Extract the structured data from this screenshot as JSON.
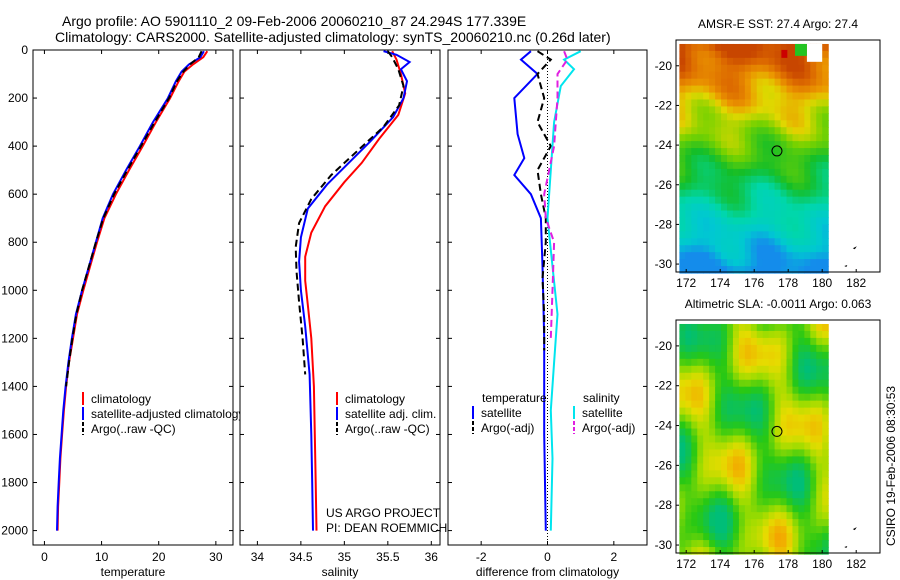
{
  "header": {
    "line1": "Argo profile: AO 5901110_2 09-Feb-2006 20060210_87 24.294S 177.339E",
    "line2": "Climatology: CARS2000. Satellite-adjusted climatology: synTS_20060210.nc (0.26d later)"
  },
  "side_label": "CSIRO 19-Feb-2006 08:30:53",
  "colors": {
    "red": "#ff0000",
    "blue": "#0000ff",
    "black": "#000000",
    "cyan": "#00e5ee",
    "magenta": "#e020e0"
  },
  "chart_data": [
    {
      "type": "line",
      "id": "temperature",
      "xlabel": "temperature",
      "xticks": [
        0,
        10,
        20,
        30
      ],
      "xlim": [
        -2,
        33
      ],
      "yticks": [
        0,
        200,
        400,
        600,
        800,
        1000,
        1200,
        1400,
        1600,
        1800,
        2000
      ],
      "ylim": [
        0,
        2060
      ],
      "legend": [
        {
          "label": "climatology",
          "color": "#ff0000",
          "style": "solid"
        },
        {
          "label": "satellite-adjusted climatology",
          "color": "#0000ff",
          "style": "solid"
        },
        {
          "label": "Argo(..raw -QC)",
          "color": "#000000",
          "style": "dashed"
        }
      ],
      "series": [
        {
          "color": "#ff0000",
          "style": "solid",
          "points": [
            [
              28.5,
              5
            ],
            [
              27.8,
              30
            ],
            [
              26,
              60
            ],
            [
              24.5,
              90
            ],
            [
              23.5,
              130
            ],
            [
              22,
              200
            ],
            [
              19.5,
              300
            ],
            [
              17.2,
              400
            ],
            [
              14.8,
              500
            ],
            [
              12.5,
              600
            ],
            [
              10.5,
              700
            ],
            [
              9.2,
              800
            ],
            [
              8,
              900
            ],
            [
              6.8,
              1000
            ],
            [
              5.7,
              1100
            ],
            [
              5,
              1200
            ],
            [
              4.3,
              1300
            ],
            [
              3.8,
              1400
            ],
            [
              3.4,
              1500
            ],
            [
              3.1,
              1600
            ],
            [
              2.8,
              1700
            ],
            [
              2.6,
              1800
            ],
            [
              2.4,
              1900
            ],
            [
              2.3,
              2000
            ]
          ]
        },
        {
          "color": "#0000ff",
          "style": "solid",
          "points": [
            [
              27.9,
              5
            ],
            [
              27.3,
              30
            ],
            [
              25.3,
              60
            ],
            [
              24,
              90
            ],
            [
              23,
              130
            ],
            [
              21.6,
              200
            ],
            [
              19,
              300
            ],
            [
              16.7,
              400
            ],
            [
              14.3,
              500
            ],
            [
              12,
              600
            ],
            [
              10.2,
              700
            ],
            [
              9,
              800
            ],
            [
              7.8,
              900
            ],
            [
              6.6,
              1000
            ],
            [
              5.5,
              1100
            ],
            [
              4.8,
              1200
            ],
            [
              4.2,
              1300
            ],
            [
              3.7,
              1400
            ],
            [
              3.3,
              1500
            ],
            [
              3,
              1600
            ],
            [
              2.7,
              1700
            ],
            [
              2.5,
              1800
            ],
            [
              2.3,
              1900
            ],
            [
              2.2,
              2000
            ]
          ]
        },
        {
          "color": "#000000",
          "style": "dashed",
          "points": [
            [
              27.5,
              5
            ],
            [
              27,
              30
            ],
            [
              25.5,
              60
            ],
            [
              24.3,
              90
            ],
            [
              23.2,
              130
            ],
            [
              21.8,
              200
            ],
            [
              19.3,
              300
            ],
            [
              16.9,
              400
            ],
            [
              14.5,
              500
            ],
            [
              12.2,
              600
            ],
            [
              10.3,
              700
            ],
            [
              9,
              800
            ],
            [
              7.8,
              900
            ],
            [
              6.6,
              1000
            ],
            [
              5.6,
              1100
            ],
            [
              4.9,
              1200
            ],
            [
              4.3,
              1300
            ],
            [
              3.8,
              1400
            ]
          ]
        }
      ]
    },
    {
      "type": "line",
      "id": "salinity",
      "xlabel": "salinity",
      "xticks": [
        34,
        34.5,
        35,
        35.5,
        36
      ],
      "xlim": [
        33.8,
        36.1
      ],
      "yticks": [
        0,
        200,
        400,
        600,
        800,
        1000,
        1200,
        1400,
        1600,
        1800,
        2000
      ],
      "ylim": [
        0,
        2060
      ],
      "legend": [
        {
          "label": "climatology",
          "color": "#ff0000",
          "style": "solid"
        },
        {
          "label": "satellite adj. clim.",
          "color": "#0000ff",
          "style": "solid"
        },
        {
          "label": "Argo(..raw -QC)",
          "color": "#000000",
          "style": "dashed"
        }
      ],
      "annotations": [
        "US ARGO PROJECT",
        "PI: DEAN ROEMMICH"
      ],
      "series": [
        {
          "color": "#ff0000",
          "style": "solid",
          "points": [
            [
              35.55,
              5
            ],
            [
              35.6,
              40
            ],
            [
              35.65,
              100
            ],
            [
              35.7,
              180
            ],
            [
              35.62,
              270
            ],
            [
              35.4,
              370
            ],
            [
              35.2,
              470
            ],
            [
              35.0,
              550
            ],
            [
              34.78,
              650
            ],
            [
              34.62,
              760
            ],
            [
              34.55,
              860
            ],
            [
              34.55,
              960
            ],
            [
              34.58,
              1060
            ],
            [
              34.62,
              1200
            ],
            [
              34.65,
              1400
            ],
            [
              34.66,
              1600
            ],
            [
              34.67,
              1800
            ],
            [
              34.68,
              2000
            ]
          ]
        },
        {
          "color": "#0000ff",
          "style": "solid",
          "points": [
            [
              35.45,
              5
            ],
            [
              35.6,
              20
            ],
            [
              35.75,
              50
            ],
            [
              35.65,
              80
            ],
            [
              35.72,
              130
            ],
            [
              35.68,
              200
            ],
            [
              35.56,
              280
            ],
            [
              35.3,
              380
            ],
            [
              35.05,
              470
            ],
            [
              34.8,
              560
            ],
            [
              34.58,
              660
            ],
            [
              34.5,
              780
            ],
            [
              34.48,
              880
            ],
            [
              34.5,
              1000
            ],
            [
              34.55,
              1150
            ],
            [
              34.6,
              1350
            ],
            [
              34.62,
              1600
            ],
            [
              34.63,
              1800
            ],
            [
              34.64,
              2000
            ]
          ]
        },
        {
          "color": "#000000",
          "style": "dashed",
          "points": [
            [
              35.5,
              5
            ],
            [
              35.55,
              30
            ],
            [
              35.62,
              80
            ],
            [
              35.68,
              150
            ],
            [
              35.63,
              230
            ],
            [
              35.45,
              320
            ],
            [
              35.15,
              420
            ],
            [
              34.85,
              520
            ],
            [
              34.62,
              620
            ],
            [
              34.48,
              720
            ],
            [
              34.44,
              820
            ],
            [
              34.45,
              920
            ],
            [
              34.48,
              1050
            ],
            [
              34.52,
              1200
            ],
            [
              34.55,
              1350
            ]
          ]
        }
      ]
    },
    {
      "type": "line",
      "id": "difference",
      "xlabel": "difference from climatology",
      "xticks": [
        -2,
        0,
        2
      ],
      "xlim": [
        -3,
        3
      ],
      "yticks": [
        0,
        200,
        400,
        600,
        800,
        1000,
        1200,
        1400,
        1600,
        1800,
        2000
      ],
      "ylim": [
        0,
        2060
      ],
      "legend_titles": [
        "temperature",
        "salinity"
      ],
      "legend_left": [
        {
          "label": "satellite",
          "color": "#0000ff",
          "style": "solid"
        },
        {
          "label": "Argo(-adj)",
          "color": "#000000",
          "style": "dashed"
        }
      ],
      "legend_right": [
        {
          "label": "satellite",
          "color": "#00e5ee",
          "style": "solid"
        },
        {
          "label": "Argo(-adj)",
          "color": "#e020e0",
          "style": "dashed"
        }
      ],
      "series": [
        {
          "color": "#0000ff",
          "style": "solid",
          "points": [
            [
              -0.5,
              5
            ],
            [
              -0.8,
              40
            ],
            [
              -0.3,
              100
            ],
            [
              -1,
              200
            ],
            [
              -0.9,
              350
            ],
            [
              -0.7,
              450
            ],
            [
              -1,
              520
            ],
            [
              -0.5,
              600
            ],
            [
              -0.2,
              700
            ],
            [
              -0.15,
              900
            ],
            [
              -0.1,
              1200
            ],
            [
              -0.1,
              1600
            ],
            [
              -0.05,
              2000
            ]
          ]
        },
        {
          "color": "#000000",
          "style": "dashed",
          "points": [
            [
              -0.3,
              5
            ],
            [
              0.1,
              40
            ],
            [
              -0.3,
              100
            ],
            [
              -0.1,
              200
            ],
            [
              -0.3,
              300
            ],
            [
              0.1,
              400
            ],
            [
              -0.3,
              500
            ],
            [
              -0.2,
              600
            ],
            [
              -0.05,
              700
            ],
            [
              -0.05,
              800
            ],
            [
              -0.15,
              950
            ],
            [
              -0.1,
              1100
            ],
            [
              -0.1,
              1250
            ]
          ]
        },
        {
          "color": "#00e5ee",
          "style": "solid",
          "points": [
            [
              1.0,
              5
            ],
            [
              0.5,
              40
            ],
            [
              0.8,
              80
            ],
            [
              0.4,
              150
            ],
            [
              0.2,
              300
            ],
            [
              0.1,
              500
            ],
            [
              0,
              700
            ],
            [
              0.15,
              900
            ],
            [
              0.3,
              1100
            ],
            [
              0.2,
              1300
            ],
            [
              0.1,
              1500
            ],
            [
              0.15,
              1700
            ],
            [
              0.1,
              2000
            ]
          ]
        },
        {
          "color": "#e020e0",
          "style": "dashed",
          "points": [
            [
              0.5,
              5
            ],
            [
              0.6,
              40
            ],
            [
              0.3,
              100
            ],
            [
              0.3,
              200
            ],
            [
              0.2,
              400
            ],
            [
              -0.1,
              600
            ],
            [
              -0.05,
              700
            ],
            [
              0.2,
              800
            ],
            [
              0.15,
              1000
            ],
            [
              0.1,
              1200
            ]
          ]
        }
      ]
    },
    {
      "type": "heatmap",
      "id": "sst-map",
      "title": "AMSR-E SST: 27.4 Argo: 27.4",
      "xticks": [
        172,
        174,
        176,
        178,
        180,
        182
      ],
      "yticks": [
        -20,
        -22,
        -24,
        -26,
        -28,
        -30
      ],
      "xlim": [
        171.4,
        183.4
      ],
      "ylim": [
        -30.4,
        -18.7
      ],
      "profile": {
        "lon": 177.339,
        "lat": -24.294
      }
    },
    {
      "type": "heatmap",
      "id": "sla-map",
      "title": "Altimetric SLA: -0.0011 Argo: 0.063",
      "xticks": [
        172,
        174,
        176,
        178,
        180,
        182
      ],
      "yticks": [
        -20,
        -22,
        -24,
        -26,
        -28,
        -30
      ],
      "xlim": [
        171.4,
        183.4
      ],
      "ylim": [
        -30.4,
        -18.7
      ],
      "profile": {
        "lon": 177.339,
        "lat": -24.294
      }
    }
  ]
}
